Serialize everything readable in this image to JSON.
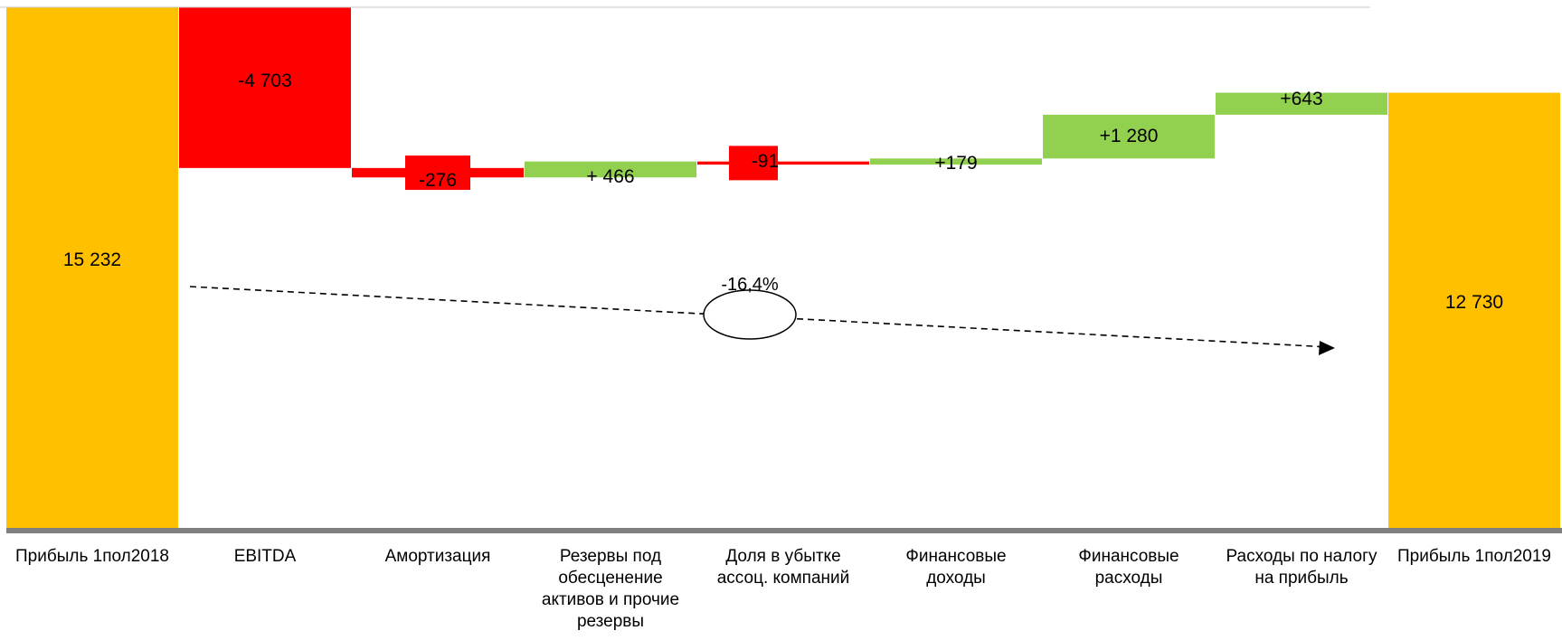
{
  "chart_data": {
    "type": "bar",
    "subtype": "waterfall",
    "title": "",
    "xlabel": "",
    "ylabel": "",
    "categories": [
      "Прибыль 1пол2018",
      "EBITDA",
      "Амортизация",
      "Резервы под обесценение активов и прочие резервы",
      "Доля в убытке ассоц. компаний",
      "Финансовые доходы",
      "Финансовые расходы",
      "Расходы по налогу на прибыль",
      "Прибыль 1пол2019"
    ],
    "category_lines": [
      [
        "Прибыль 1пол2018"
      ],
      [
        "EBITDA"
      ],
      [
        "Амортизация"
      ],
      [
        "Резервы под",
        "обесценение",
        "активов и прочие",
        "резервы"
      ],
      [
        "Доля в убытке",
        "ассоц. компаний"
      ],
      [
        "Финансовые",
        "доходы"
      ],
      [
        "Финансовые",
        "расходы"
      ],
      [
        "Расходы по налогу",
        "на прибыль"
      ],
      [
        "Прибыль 1пол2019"
      ]
    ],
    "values": [
      15232,
      -4703,
      -276,
      466,
      -91,
      179,
      1280,
      643,
      12730
    ],
    "kinds": [
      "total",
      "delta",
      "delta",
      "delta",
      "delta",
      "delta",
      "delta",
      "delta",
      "total"
    ],
    "value_labels": [
      "15 232",
      "-4 703",
      "-276",
      "+ 466",
      "-91",
      "+179",
      "+1 280",
      "+643",
      "12 730"
    ],
    "change_label": "-16,4%",
    "colors": {
      "total": "#FFC000",
      "increase": "#92D050",
      "decrease": "#FF0000",
      "axis": "#808080",
      "arrow": "#000000"
    }
  }
}
